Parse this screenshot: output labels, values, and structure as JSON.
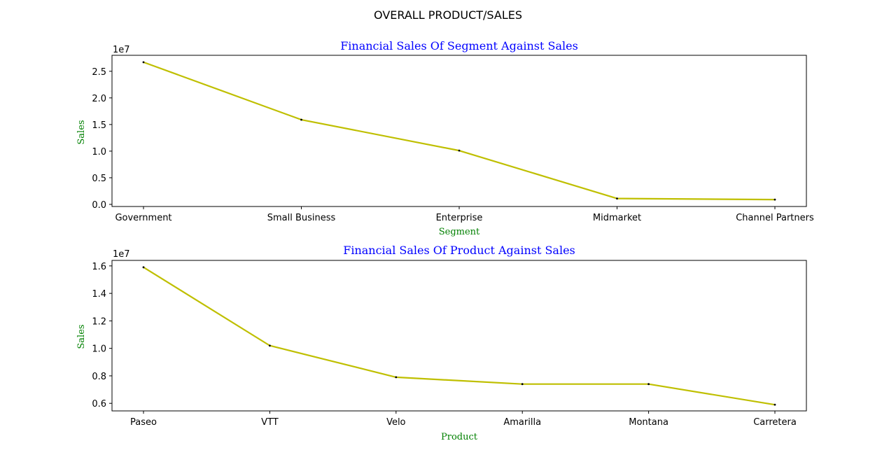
{
  "figure": {
    "suptitle": "OVERALL PRODUCT/SALES"
  },
  "colors": {
    "title": "#0000ff",
    "axis_label": "#008000",
    "line": "#bfbf00",
    "marker": "#000000"
  },
  "chart_data": [
    {
      "type": "line",
      "title": "Financial Sales Of Segment Against Sales",
      "xlabel": "Segment",
      "ylabel": "Sales",
      "y_offset_label": "1e7",
      "categories": [
        "Government",
        "Small Business",
        "Enterprise",
        "Midmarket",
        "Channel Partners"
      ],
      "values": [
        26700000,
        15900000,
        10100000,
        1100000,
        900000
      ],
      "ylim": [
        -400000,
        28000000
      ],
      "yticks": [
        0,
        5000000,
        10000000,
        15000000,
        20000000,
        25000000
      ],
      "ytick_labels": [
        "0.0",
        "0.5",
        "1.0",
        "1.5",
        "2.0",
        "2.5"
      ],
      "grid": false,
      "legend": "none"
    },
    {
      "type": "line",
      "title": "Financial Sales Of Product Against Sales",
      "xlabel": "Product",
      "ylabel": "Sales",
      "y_offset_label": "1e7",
      "categories": [
        "Paseo",
        "VTT",
        "Velo",
        "Amarilla",
        "Montana",
        "Carretera"
      ],
      "values": [
        15900000,
        10200000,
        7900000,
        7400000,
        7400000,
        5900000
      ],
      "ylim": [
        5450000,
        16400000
      ],
      "yticks": [
        6000000,
        8000000,
        10000000,
        12000000,
        14000000,
        16000000
      ],
      "ytick_labels": [
        "0.6",
        "0.8",
        "1.0",
        "1.2",
        "1.4",
        "1.6"
      ],
      "grid": false,
      "legend": "none"
    }
  ]
}
